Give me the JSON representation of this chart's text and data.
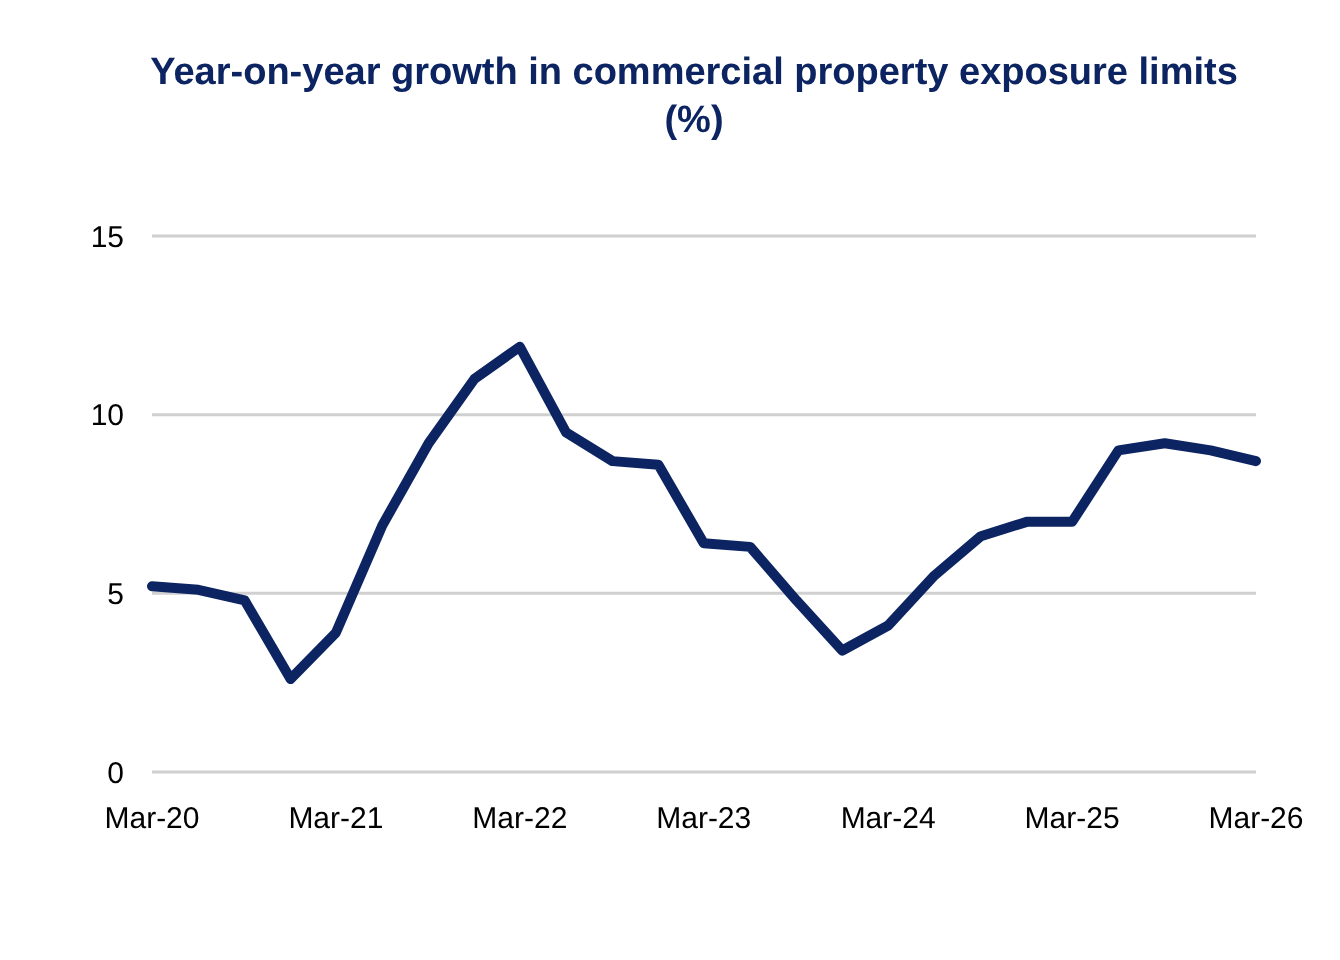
{
  "chart_data": {
    "type": "line",
    "title": "Year-on-year growth in commercial property exposure limits (%)",
    "x": [
      "2020-03",
      "2020-06",
      "2020-09",
      "2020-12",
      "2021-03",
      "2021-06",
      "2021-09",
      "2021-12",
      "2022-03",
      "2022-06",
      "2022-09",
      "2022-12",
      "2023-03",
      "2023-06",
      "2023-09",
      "2023-12",
      "2024-03",
      "2024-06",
      "2024-09",
      "2024-12",
      "2025-03",
      "2025-06",
      "2025-09",
      "2025-12",
      "2026-03"
    ],
    "series": [
      {
        "color": "#0c2461",
        "values": [
          5.2,
          5.1,
          4.8,
          2.6,
          3.9,
          6.9,
          9.2,
          11.0,
          11.9,
          9.5,
          8.7,
          8.6,
          6.4,
          6.3,
          4.8,
          3.4,
          4.1,
          5.5,
          6.6,
          7.0,
          7.0,
          9.0,
          9.2,
          9.0,
          8.7
        ]
      }
    ],
    "xlim": [
      "2020-03",
      "2026-03"
    ],
    "xticks": [
      {
        "value": "2020-03",
        "label": "Mar-20"
      },
      {
        "value": "2021-03",
        "label": "Mar-21"
      },
      {
        "value": "2022-03",
        "label": "Mar-22"
      },
      {
        "value": "2023-03",
        "label": "Mar-23"
      },
      {
        "value": "2024-03",
        "label": "Mar-24"
      },
      {
        "value": "2025-03",
        "label": "Mar-25"
      },
      {
        "value": "2026-03",
        "label": "Mar-26"
      }
    ],
    "ylim": [
      0,
      15
    ],
    "yticks": [
      0,
      5,
      10,
      15
    ],
    "grid": "y",
    "marker": "none",
    "line_style": "solid"
  }
}
